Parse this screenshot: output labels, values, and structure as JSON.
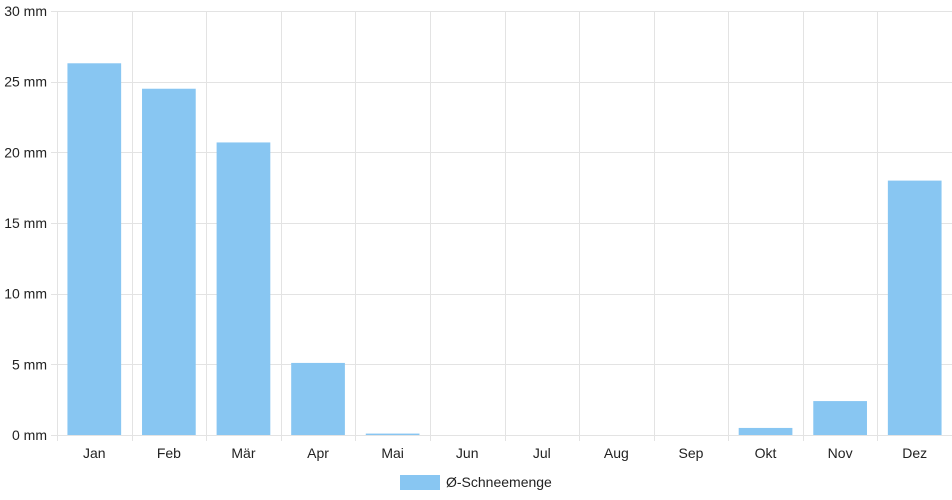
{
  "chart_data": {
    "type": "bar",
    "categories": [
      "Jan",
      "Feb",
      "Mär",
      "Apr",
      "Mai",
      "Jun",
      "Jul",
      "Aug",
      "Sep",
      "Okt",
      "Nov",
      "Dez"
    ],
    "series": [
      {
        "name": "Ø-Schneemenge",
        "values": [
          26.3,
          24.5,
          20.7,
          5.1,
          0.1,
          0,
          0,
          0,
          0,
          0.5,
          2.4,
          18.0
        ],
        "color": "#88c6f2"
      }
    ],
    "y_unit": "mm",
    "y_ticks": [
      0,
      5,
      10,
      15,
      20,
      25,
      30
    ],
    "ylim": [
      0,
      30
    ],
    "grid": true,
    "legend_position": "bottom-center"
  }
}
